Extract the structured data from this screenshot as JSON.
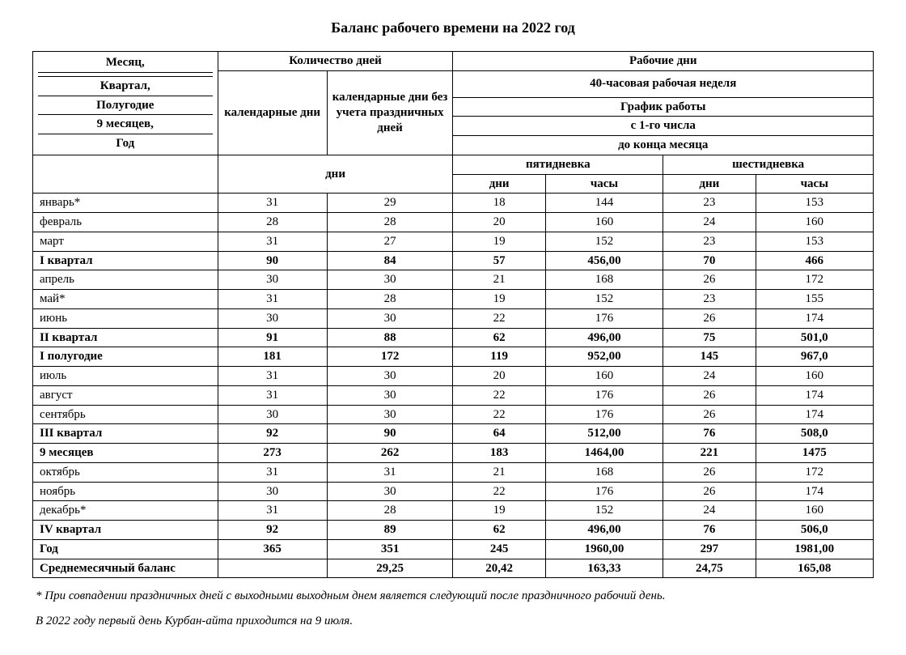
{
  "title": "Баланс рабочего времени на 2022 год",
  "headers": {
    "period_lines": [
      "Месяц,",
      "",
      "Квартал,",
      "Полугодие",
      "9 месяцев,",
      "Год"
    ],
    "days_group": "Количество дней",
    "workdays_group": "Рабочие дни",
    "calendar_days": "календарные дни",
    "calendar_days_no_holidays": "календарные дни без учета праздничных дней",
    "work_week_40h": "40-часовая рабочая неделя",
    "schedule": "График работы",
    "from_first": "с 1-го числа",
    "to_end": "до конца месяца",
    "five_day": "пятидневка",
    "six_day": "шестидневка",
    "sub_days": "дни",
    "sub_days5": "дни",
    "sub_hours5": "часы",
    "sub_days6": "дни",
    "sub_hours6": "часы"
  },
  "rows": [
    {
      "bold": false,
      "label": "январь*",
      "cal": "31",
      "calnh": "29",
      "d5": "18",
      "h5": "144",
      "d6": "23",
      "h6": "153"
    },
    {
      "bold": false,
      "label": "февраль",
      "cal": "28",
      "calnh": "28",
      "d5": "20",
      "h5": "160",
      "d6": "24",
      "h6": "160"
    },
    {
      "bold": false,
      "label": "март",
      "cal": "31",
      "calnh": "27",
      "d5": "19",
      "h5": "152",
      "d6": "23",
      "h6": "153"
    },
    {
      "bold": true,
      "label": "I квартал",
      "cal": "90",
      "calnh": "84",
      "d5": "57",
      "h5": "456,00",
      "d6": "70",
      "h6": "466"
    },
    {
      "bold": false,
      "label": "апрель",
      "cal": "30",
      "calnh": "30",
      "d5": "21",
      "h5": "168",
      "d6": "26",
      "h6": "172"
    },
    {
      "bold": false,
      "label": "май*",
      "cal": "31",
      "calnh": "28",
      "d5": "19",
      "h5": "152",
      "d6": "23",
      "h6": "155"
    },
    {
      "bold": false,
      "label": "июнь",
      "cal": "30",
      "calnh": "30",
      "d5": "22",
      "h5": "176",
      "d6": "26",
      "h6": "174"
    },
    {
      "bold": true,
      "label": "II квартал",
      "cal": "91",
      "calnh": "88",
      "d5": "62",
      "h5": "496,00",
      "d6": "75",
      "h6": "501,0"
    },
    {
      "bold": true,
      "label": "I полугодие",
      "cal": "181",
      "calnh": "172",
      "d5": "119",
      "h5": "952,00",
      "d6": "145",
      "h6": "967,0"
    },
    {
      "bold": false,
      "label": "июль",
      "cal": "31",
      "calnh": "30",
      "d5": "20",
      "h5": "160",
      "d6": "24",
      "h6": "160"
    },
    {
      "bold": false,
      "label": "август",
      "cal": "31",
      "calnh": "30",
      "d5": "22",
      "h5": "176",
      "d6": "26",
      "h6": "174"
    },
    {
      "bold": false,
      "label": "сентябрь",
      "cal": "30",
      "calnh": "30",
      "d5": "22",
      "h5": "176",
      "d6": "26",
      "h6": "174"
    },
    {
      "bold": true,
      "label": "III квартал",
      "cal": "92",
      "calnh": "90",
      "d5": "64",
      "h5": "512,00",
      "d6": "76",
      "h6": "508,0"
    },
    {
      "bold": true,
      "label": "9 месяцев",
      "cal": "273",
      "calnh": "262",
      "d5": "183",
      "h5": "1464,00",
      "d6": "221",
      "h6": "1475"
    },
    {
      "bold": false,
      "label": "октябрь",
      "cal": "31",
      "calnh": "31",
      "d5": "21",
      "h5": "168",
      "d6": "26",
      "h6": "172"
    },
    {
      "bold": false,
      "label": "ноябрь",
      "cal": "30",
      "calnh": "30",
      "d5": "22",
      "h5": "176",
      "d6": "26",
      "h6": "174"
    },
    {
      "bold": false,
      "label": "декабрь*",
      "cal": "31",
      "calnh": "28",
      "d5": "19",
      "h5": "152",
      "d6": "24",
      "h6": "160"
    },
    {
      "bold": true,
      "label": "IV квартал",
      "cal": "92",
      "calnh": "89",
      "d5": "62",
      "h5": "496,00",
      "d6": "76",
      "h6": "506,0"
    },
    {
      "bold": true,
      "label": "Год",
      "cal": "365",
      "calnh": "351",
      "d5": "245",
      "h5": "1960,00",
      "d6": "297",
      "h6": "1981,00"
    },
    {
      "bold": true,
      "label": "Среднемесячный баланс",
      "cal": "",
      "calnh": "29,25",
      "d5": "20,42",
      "h5": "163,33",
      "d6": "24,75",
      "h6": "165,08"
    }
  ],
  "footnote1": "* При совпадении праздничных дней с выходными выходным днем является следующий после праздничного рабочий день.",
  "footnote2": "В 2022 году первый день Курбан-айта приходится на 9 июля."
}
